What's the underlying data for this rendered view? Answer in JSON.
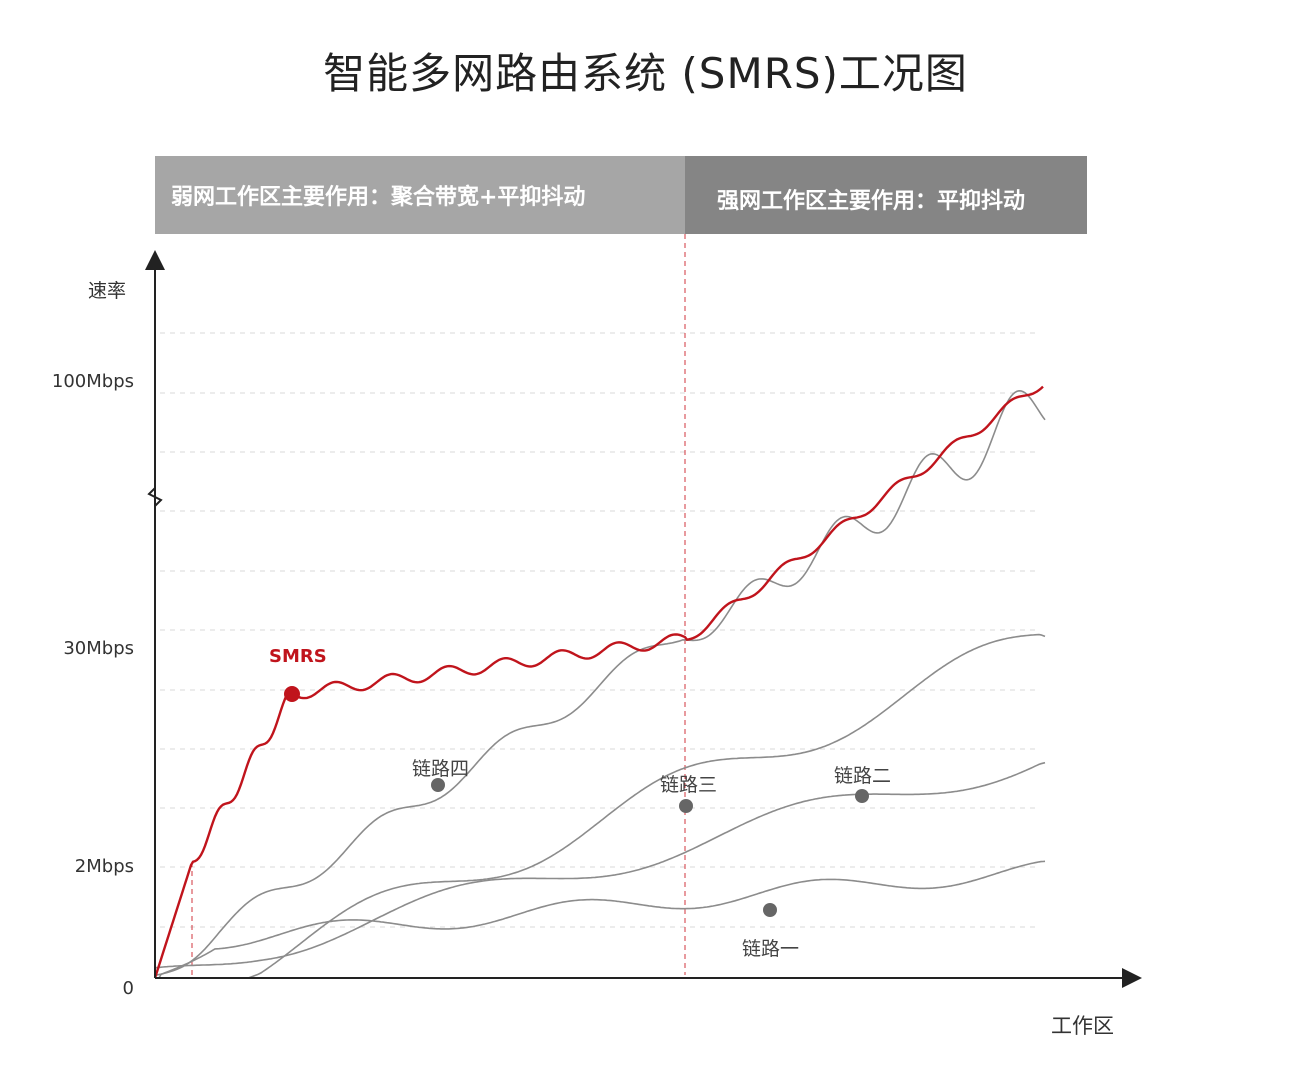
{
  "title": "智能多网路由系统 (SMRS)工况图",
  "bands": {
    "weak": "弱网工作区主要作用：聚合带宽+平抑抖动",
    "strong": "强网工作区主要作用：平抑抖动"
  },
  "colors": {
    "smrs": "#c0141c",
    "links": "#8c8c8c",
    "marker": "#666666",
    "divider": "#d0343c",
    "band_weak": "#a6a6a6",
    "band_strong": "#858585"
  },
  "chart_data": {
    "type": "line",
    "xlabel": "工作区",
    "ylabel": "速率",
    "y_ticks": [
      "0",
      "2Mbps",
      "30Mbps",
      "100Mbps"
    ],
    "y_axis_break": true,
    "grid": "dashed",
    "series": [
      {
        "name": "SMRS",
        "values": "aggregated rate, rises fast to ~30Mbps in weak zone then climbs beyond 100Mbps in strong zone"
      },
      {
        "name": "链路一",
        "values": "lowest link"
      },
      {
        "name": "链路二",
        "values": "mid link"
      },
      {
        "name": "链路三",
        "values": "mid-high link"
      },
      {
        "name": "链路四",
        "values": "highest link, oscillating around SMRS in strong zone"
      }
    ],
    "labels": {
      "smrs": "SMRS",
      "link1": "链路一",
      "link2": "链路二",
      "link3": "链路三",
      "link4": "链路四"
    }
  }
}
